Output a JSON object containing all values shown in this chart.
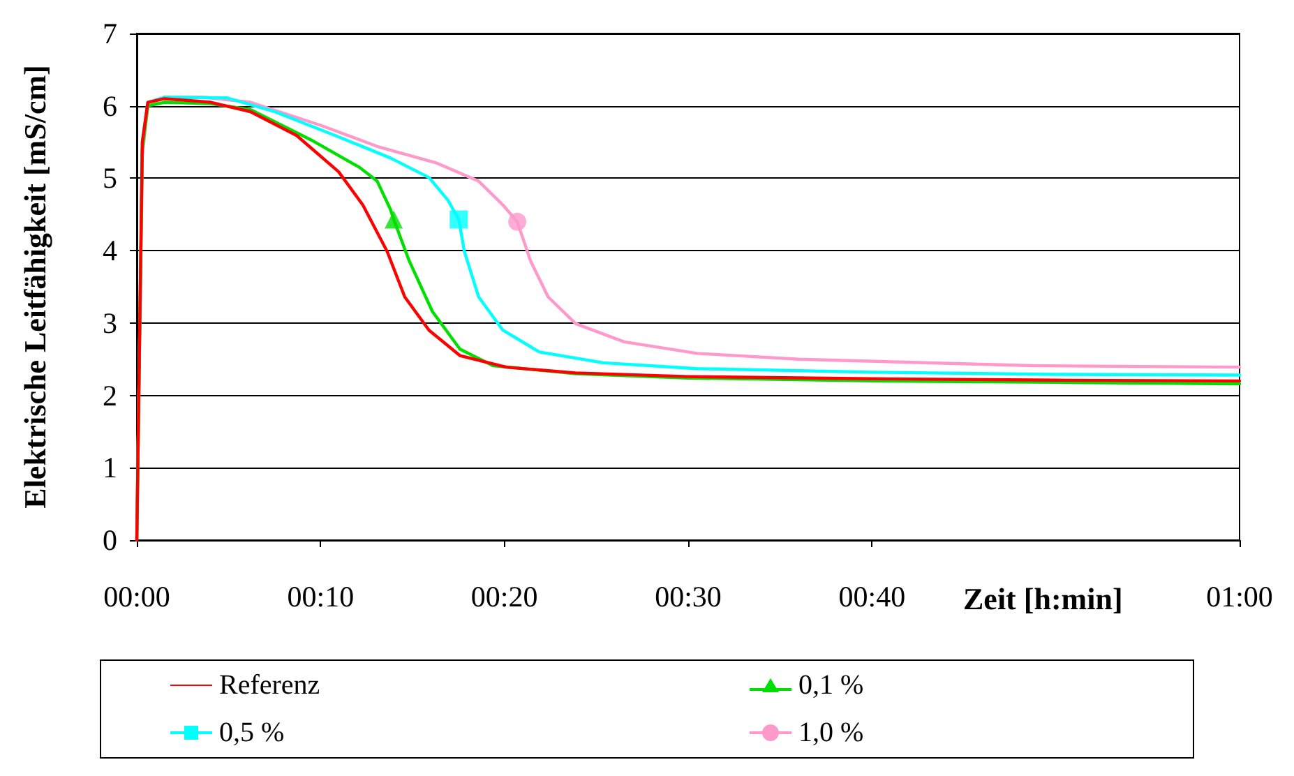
{
  "chart_data": {
    "type": "line",
    "xlabel": "Zeit [h:min]",
    "ylabel": "Elektrische Leitfähigkeit [mS/cm]",
    "xlim": [
      0,
      1
    ],
    "xticks": [
      {
        "value": 0,
        "label": "00:00"
      },
      {
        "value": 0.1667,
        "label": "00:10"
      },
      {
        "value": 0.3333,
        "label": "00:20"
      },
      {
        "value": 0.5,
        "label": "00:30"
      },
      {
        "value": 0.6667,
        "label": "00:40"
      },
      {
        "value": 1,
        "label": "01:00"
      }
    ],
    "ylim": [
      0,
      7
    ],
    "yticks": [
      0,
      1,
      2,
      3,
      4,
      5,
      6,
      7
    ],
    "grid": "y",
    "legend": "bottom",
    "line_style": "solid",
    "series": [
      {
        "name": "Referenz",
        "color": "#ff0000",
        "marker": "none",
        "x": [
          0,
          0.005,
          0.01,
          0.025,
          0.067,
          0.103,
          0.145,
          0.183,
          0.205,
          0.227,
          0.243,
          0.265,
          0.293,
          0.335,
          0.398,
          0.5,
          0.667,
          0.833,
          1
        ],
        "values": [
          0,
          5.5,
          6.05,
          6.1,
          6.05,
          5.92,
          5.59,
          5.09,
          4.63,
          3.99,
          3.36,
          2.9,
          2.55,
          2.39,
          2.31,
          2.26,
          2.23,
          2.21,
          2.2
        ]
      },
      {
        "name": "0,1 %",
        "color": "#00e000",
        "marker": "none",
        "x": [
          0,
          0.005,
          0.01,
          0.025,
          0.067,
          0.103,
          0.158,
          0.202,
          0.218,
          0.23,
          0.233,
          0.247,
          0.268,
          0.293,
          0.323,
          0.398,
          0.5,
          0.667,
          0.833,
          1
        ],
        "values": [
          0,
          5.4,
          6.0,
          6.05,
          6.03,
          5.95,
          5.53,
          5.15,
          4.96,
          4.57,
          4.43,
          3.86,
          3.16,
          2.64,
          2.41,
          2.3,
          2.24,
          2.2,
          2.18,
          2.16
        ]
      },
      {
        "name": "0,5 %",
        "color": "#00ffff",
        "marker": "none",
        "x": [
          0,
          0.005,
          0.01,
          0.025,
          0.082,
          0.125,
          0.18,
          0.23,
          0.265,
          0.282,
          0.292,
          0.297,
          0.31,
          0.332,
          0.365,
          0.423,
          0.508,
          0.667,
          0.833,
          1
        ],
        "values": [
          0,
          5.5,
          6.05,
          6.12,
          6.11,
          5.92,
          5.59,
          5.28,
          5.01,
          4.7,
          4.43,
          3.99,
          3.36,
          2.9,
          2.6,
          2.45,
          2.37,
          2.32,
          2.29,
          2.28
        ]
      },
      {
        "name": "1,0 %",
        "color": "#ff99cc",
        "marker": "none",
        "x": [
          0,
          0.005,
          0.01,
          0.025,
          0.06,
          0.103,
          0.167,
          0.218,
          0.272,
          0.31,
          0.332,
          0.345,
          0.357,
          0.373,
          0.398,
          0.442,
          0.508,
          0.6,
          0.812,
          1
        ],
        "values": [
          0,
          5.3,
          6.0,
          6.12,
          6.12,
          6.05,
          5.73,
          5.44,
          5.21,
          4.96,
          4.63,
          4.4,
          3.86,
          3.36,
          2.99,
          2.74,
          2.58,
          2.5,
          2.41,
          2.39
        ]
      },
      {
        "type": "scatter",
        "color": "#00e000",
        "marker": "triangle",
        "x": [
          0.233
        ],
        "values": [
          4.43
        ]
      },
      {
        "type": "scatter",
        "color": "#00ffff",
        "marker": "square",
        "x": [
          0.292
        ],
        "values": [
          4.43
        ]
      },
      {
        "type": "scatter",
        "color": "#ff99cc",
        "marker": "circle",
        "x": [
          0.345
        ],
        "values": [
          4.4
        ]
      }
    ]
  }
}
